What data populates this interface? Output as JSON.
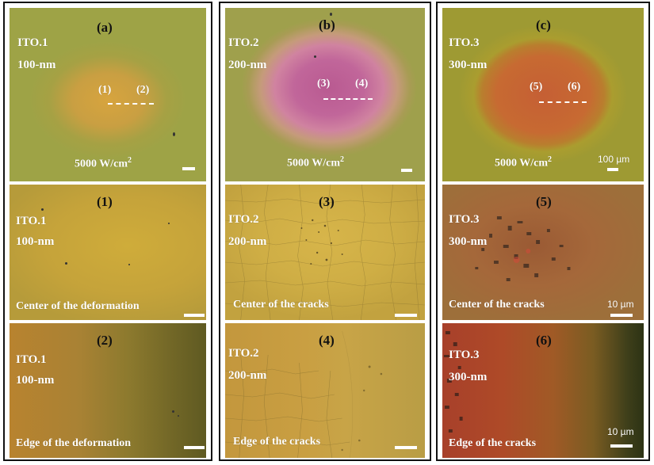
{
  "panels": {
    "a": {
      "letter": "(a)",
      "sample": "ITO.1",
      "thickness": "100-nm",
      "points": [
        "(1)",
        "(2)"
      ],
      "power": "5000 W/cm",
      "power_sup": "2"
    },
    "b": {
      "letter": "(b)",
      "sample": "ITO.2",
      "thickness": "200-nm",
      "points": [
        "(3)",
        "(4)"
      ],
      "power": "5000 W/cm",
      "power_sup": "2"
    },
    "c": {
      "letter": "(c)",
      "sample": "ITO.3",
      "thickness": "300-nm",
      "points": [
        "(5)",
        "(6)"
      ],
      "power": "5000 W/cm",
      "power_sup": "2",
      "scale": "100 µm"
    },
    "p1": {
      "letter": "(1)",
      "sample": "ITO.1",
      "thickness": "100-nm",
      "caption": "Center of the deformation"
    },
    "p3": {
      "letter": "(3)",
      "sample": "ITO.2",
      "thickness": "200-nm",
      "caption": "Center of the cracks"
    },
    "p5": {
      "letter": "(5)",
      "sample": "ITO.3",
      "thickness": "300-nm",
      "caption": "Center of the cracks",
      "scale": "10 µm"
    },
    "p2": {
      "letter": "(2)",
      "sample": "ITO.1",
      "thickness": "100-nm",
      "caption": "Edge of the deformation"
    },
    "p4": {
      "letter": "(4)",
      "sample": "ITO.2",
      "thickness": "200-nm",
      "caption": "Edge of the cracks"
    },
    "p6": {
      "letter": "(6)",
      "sample": "ITO.3",
      "thickness": "300-nm",
      "caption": "Edge of the cracks",
      "scale": "10 µm"
    }
  }
}
